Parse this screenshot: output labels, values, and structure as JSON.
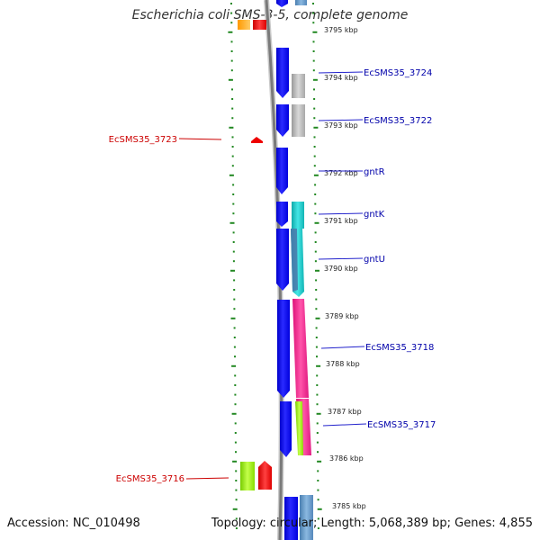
{
  "title": "Escherichia coli SMS-3-5, complete genome",
  "footer": {
    "accession": "Accession: NC_010498",
    "summary": "Topology: circular; Length: 5,068,389 bp; Genes: 4,855"
  },
  "scale": {
    "ticks": [
      {
        "label": "3795 kbp",
        "kbp": 3795
      },
      {
        "label": "3794 kbp",
        "kbp": 3794
      },
      {
        "label": "3793 kbp",
        "kbp": 3793
      },
      {
        "label": "3792 kbp",
        "kbp": 3792
      },
      {
        "label": "3791 kbp",
        "kbp": 3791
      },
      {
        "label": "3790 kbp",
        "kbp": 3790
      },
      {
        "label": "3789 kbp",
        "kbp": 3789
      },
      {
        "label": "3788 kbp",
        "kbp": 3788
      },
      {
        "label": "3787 kbp",
        "kbp": 3787
      },
      {
        "label": "3786 kbp",
        "kbp": 3786
      },
      {
        "label": "3785 kbp",
        "kbp": 3785
      }
    ]
  },
  "labels": [
    {
      "text": "EcSMS35_3724",
      "side": "right",
      "color": "#0000aa"
    },
    {
      "text": "EcSMS35_3722",
      "side": "right",
      "color": "#0000aa"
    },
    {
      "text": "gntR",
      "side": "right",
      "color": "#0000aa"
    },
    {
      "text": "gntK",
      "side": "right",
      "color": "#0000aa"
    },
    {
      "text": "gntU",
      "side": "right",
      "color": "#0000aa"
    },
    {
      "text": "EcSMS35_3718",
      "side": "right",
      "color": "#0000aa"
    },
    {
      "text": "EcSMS35_3717",
      "side": "right",
      "color": "#0000aa"
    },
    {
      "text": "EcSMS35_3723",
      "side": "left",
      "color": "#cc0000"
    },
    {
      "text": "EcSMS35_3716",
      "side": "left",
      "color": "#cc0000"
    }
  ],
  "colors": {
    "backbone": "#808080",
    "cds_forward": "#0000ee",
    "cds_reverse": "#ee0000",
    "gc_skew": "#bbbbbb",
    "tick": "#228822",
    "gntK": "#22cccc",
    "gntU": "#22cccc",
    "EcSMS35_3718": "#ff2288",
    "EcSMS35_3717": "#ff2288",
    "EcSMS35_3716": "#99ee00"
  }
}
